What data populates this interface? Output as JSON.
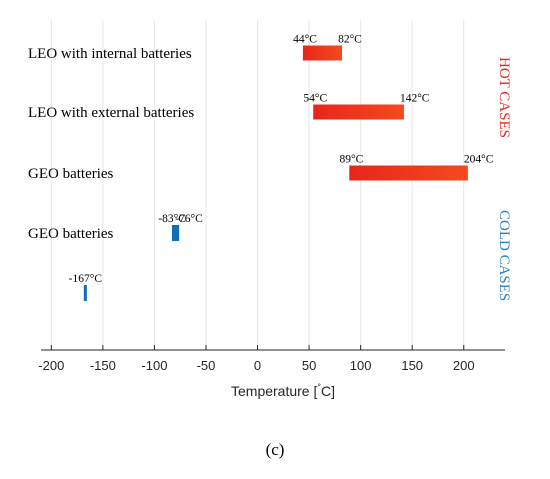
{
  "chart_data": {
    "type": "bar",
    "orientation": "horizontal",
    "xlabel": "Temperature [°C]",
    "xlim": [
      -210,
      240
    ],
    "xticks": [
      -200,
      -150,
      -100,
      -50,
      0,
      50,
      100,
      150,
      200
    ],
    "grid": true,
    "rows": [
      {
        "category": "LEO with internal batteries",
        "min": 44,
        "max": 82,
        "min_label": "44°C",
        "max_label": "82°C",
        "group": "hot"
      },
      {
        "category": "LEO with external batteries",
        "min": 54,
        "max": 142,
        "min_label": "54°C",
        "max_label": "142°C",
        "group": "hot"
      },
      {
        "category": "GEO batteries",
        "min": 89,
        "max": 204,
        "min_label": "89°C",
        "max_label": "204°C",
        "group": "hot"
      },
      {
        "category": "GEO batteries",
        "min": -83,
        "max": -76,
        "min_label": "-83°C",
        "max_label": "-76°C",
        "group": "cold"
      },
      {
        "category": "",
        "min": -167,
        "max": -167,
        "min_label": "-167°C",
        "max_label": "",
        "group": "cold"
      }
    ],
    "case_labels": {
      "hot": "HOT CASES",
      "cold": "COLD CASES"
    },
    "colors": {
      "hot_start": "#e8261c",
      "hot_end": "#f44a1e",
      "cold": "#0f6eb8",
      "hot_text": "#e8261c",
      "cold_text": "#2a7fc4"
    }
  },
  "figure_label": "(c)"
}
